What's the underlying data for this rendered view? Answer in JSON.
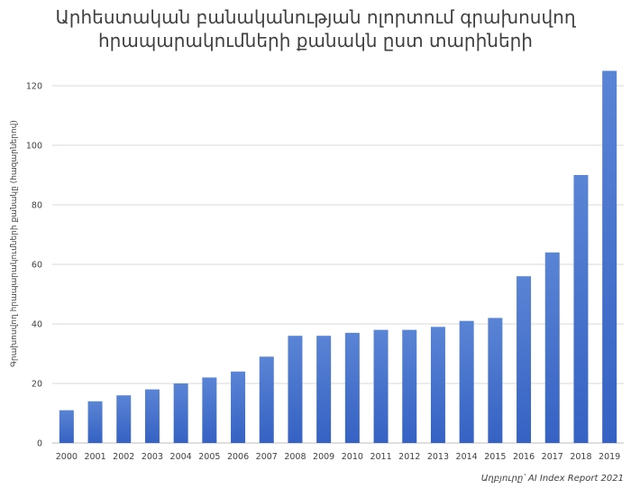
{
  "chart_data": {
    "type": "bar",
    "title_lines": [
      "Արհեստական բանականության ոլորտում գրախոսվող",
      "հրապարակումների քանակն ըստ տարիների"
    ],
    "ylabel": "Գրախոսվող հրապարակումների քանակը (հազարներով)",
    "xlabel": "",
    "source": "Աղբյուրը՝ AI Index Report 2021",
    "categories": [
      "2000",
      "2001",
      "2002",
      "2003",
      "2004",
      "2005",
      "2006",
      "2007",
      "2008",
      "2009",
      "2010",
      "2011",
      "2012",
      "2013",
      "2014",
      "2015",
      "2016",
      "2017",
      "2018",
      "2019"
    ],
    "values": [
      11,
      14,
      16,
      18,
      20,
      22,
      24,
      29,
      36,
      36,
      37,
      38,
      38,
      39,
      41,
      42,
      56,
      64,
      90,
      125
    ],
    "yticks": [
      "0",
      "20",
      "40",
      "60",
      "80",
      "100",
      "120"
    ],
    "ylim": [
      0,
      130
    ],
    "grid": true,
    "bar_color_top": "#5a84d4",
    "bar_color_bottom": "#3562c4",
    "grid_color": "#d9d9d9"
  }
}
